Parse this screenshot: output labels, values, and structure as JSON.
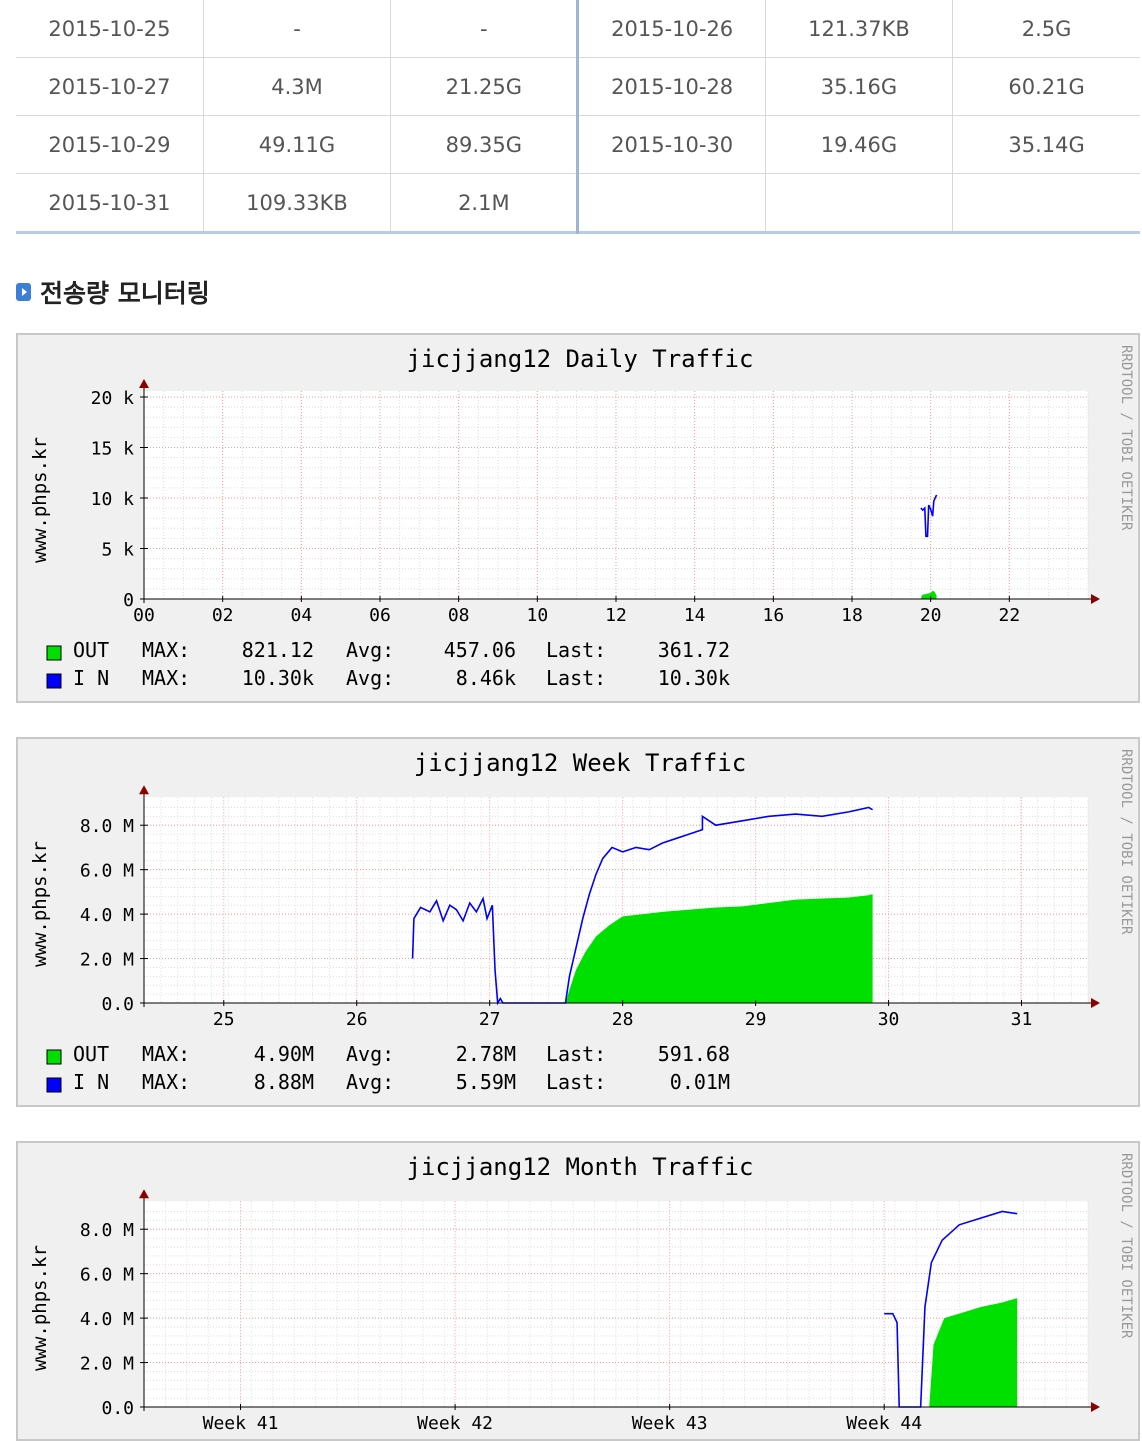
{
  "usage_table": {
    "rows": [
      [
        "2015-10-25",
        "-",
        "-",
        "2015-10-26",
        "121.37KB",
        "2.5G"
      ],
      [
        "2015-10-27",
        "4.3M",
        "21.25G",
        "2015-10-28",
        "35.16G",
        "60.21G"
      ],
      [
        "2015-10-29",
        "49.11G",
        "89.35G",
        "2015-10-30",
        "19.46G",
        "35.14G"
      ],
      [
        "2015-10-31",
        "109.33KB",
        "2.1M",
        "",
        "",
        ""
      ]
    ]
  },
  "section": {
    "title": "전송량 모니터링",
    "icon": "arrow-box-icon"
  },
  "watermark": "RRDTOOL / TOBI OETIKER",
  "colors": {
    "out": "#00e000",
    "in": "#0000ff",
    "grid_major": "#ff9999",
    "panel_bg": "#f0f0f0",
    "plot_bg": "#ffffff"
  },
  "chart_data": [
    {
      "type": "area",
      "title": "jicjjang12 Daily Traffic",
      "ylabel": "www.phps.kr",
      "ylim": [
        0,
        20000
      ],
      "yticks": [
        {
          "value": 0,
          "label": "0"
        },
        {
          "value": 5000,
          "label": "5 k"
        },
        {
          "value": 10000,
          "label": "10 k"
        },
        {
          "value": 15000,
          "label": "15 k"
        },
        {
          "value": 20000,
          "label": "20 k"
        }
      ],
      "xlim": [
        0,
        24
      ],
      "xticks": [
        {
          "value": 0,
          "label": "00"
        },
        {
          "value": 2,
          "label": "02"
        },
        {
          "value": 4,
          "label": "04"
        },
        {
          "value": 6,
          "label": "06"
        },
        {
          "value": 8,
          "label": "08"
        },
        {
          "value": 10,
          "label": "10"
        },
        {
          "value": 12,
          "label": "12"
        },
        {
          "value": 14,
          "label": "14"
        },
        {
          "value": 16,
          "label": "16"
        },
        {
          "value": 18,
          "label": "18"
        },
        {
          "value": 20,
          "label": "20"
        },
        {
          "value": 22,
          "label": "22"
        }
      ],
      "series": [
        {
          "name": "OUT",
          "kind": "area",
          "color": "#00e000",
          "points": [
            [
              19.75,
              0
            ],
            [
              19.78,
              400
            ],
            [
              19.9,
              520
            ],
            [
              20.0,
              600
            ],
            [
              20.05,
              820
            ],
            [
              20.1,
              700
            ],
            [
              20.15,
              361
            ]
          ]
        },
        {
          "name": "I N",
          "kind": "line",
          "color": "#0000ff",
          "points": [
            [
              19.75,
              9000
            ],
            [
              19.8,
              8800
            ],
            [
              19.85,
              9000
            ],
            [
              19.88,
              6200
            ],
            [
              19.92,
              6200
            ],
            [
              19.95,
              9300
            ],
            [
              20.0,
              8900
            ],
            [
              20.05,
              8200
            ],
            [
              20.08,
              9700
            ],
            [
              20.15,
              10300
            ]
          ]
        }
      ],
      "legend": [
        {
          "series": "OUT",
          "max_label": "MAX:",
          "max": "821.12",
          "avg_label": "Avg:",
          "avg": "457.06",
          "last_label": "Last:",
          "last": "361.72"
        },
        {
          "series": "I N",
          "max_label": "MAX:",
          "max": "10.30k",
          "avg_label": "Avg:",
          "avg": "8.46k",
          "last_label": "Last:",
          "last": "10.30k"
        }
      ]
    },
    {
      "type": "area",
      "title": "jicjjang12 Week Traffic",
      "ylabel": "www.phps.kr",
      "ylim": [
        0,
        9000000
      ],
      "yticks": [
        {
          "value": 0,
          "label": "0.0"
        },
        {
          "value": 2000000,
          "label": "2.0 M"
        },
        {
          "value": 4000000,
          "label": "4.0 M"
        },
        {
          "value": 6000000,
          "label": "6.0 M"
        },
        {
          "value": 8000000,
          "label": "8.0 M"
        }
      ],
      "xlim": [
        24.4,
        31.5
      ],
      "xticks": [
        {
          "value": 25,
          "label": "25"
        },
        {
          "value": 26,
          "label": "26"
        },
        {
          "value": 27,
          "label": "27"
        },
        {
          "value": 28,
          "label": "28"
        },
        {
          "value": 29,
          "label": "29"
        },
        {
          "value": 30,
          "label": "30"
        },
        {
          "value": 31,
          "label": "31"
        }
      ],
      "series": [
        {
          "name": "OUT",
          "kind": "area",
          "color": "#00e000",
          "points": [
            [
              27.57,
              0
            ],
            [
              27.6,
              600000
            ],
            [
              27.65,
              1500000
            ],
            [
              27.72,
              2300000
            ],
            [
              27.8,
              3000000
            ],
            [
              27.9,
              3500000
            ],
            [
              28.0,
              3900000
            ],
            [
              28.15,
              4000000
            ],
            [
              28.3,
              4100000
            ],
            [
              28.5,
              4200000
            ],
            [
              28.7,
              4300000
            ],
            [
              28.9,
              4350000
            ],
            [
              29.1,
              4500000
            ],
            [
              29.3,
              4650000
            ],
            [
              29.5,
              4700000
            ],
            [
              29.7,
              4750000
            ],
            [
              29.85,
              4850000
            ],
            [
              29.88,
              4900000
            ]
          ]
        },
        {
          "name": "I N",
          "kind": "line",
          "color": "#0000ff",
          "points": [
            [
              26.42,
              2000000
            ],
            [
              26.43,
              3800000
            ],
            [
              26.48,
              4300000
            ],
            [
              26.55,
              4100000
            ],
            [
              26.6,
              4600000
            ],
            [
              26.65,
              3700000
            ],
            [
              26.7,
              4400000
            ],
            [
              26.75,
              4200000
            ],
            [
              26.8,
              3700000
            ],
            [
              26.85,
              4500000
            ],
            [
              26.9,
              4100000
            ],
            [
              26.95,
              4700000
            ],
            [
              26.98,
              3800000
            ],
            [
              27.02,
              4400000
            ],
            [
              27.04,
              1500000
            ],
            [
              27.06,
              0
            ],
            [
              27.08,
              200000
            ],
            [
              27.1,
              0
            ],
            [
              27.57,
              0
            ],
            [
              27.6,
              1200000
            ],
            [
              27.65,
              2500000
            ],
            [
              27.7,
              3800000
            ],
            [
              27.75,
              4900000
            ],
            [
              27.8,
              5800000
            ],
            [
              27.85,
              6500000
            ],
            [
              27.92,
              7000000
            ],
            [
              28.0,
              6800000
            ],
            [
              28.1,
              7000000
            ],
            [
              28.2,
              6900000
            ],
            [
              28.3,
              7200000
            ],
            [
              28.4,
              7400000
            ],
            [
              28.5,
              7600000
            ],
            [
              28.6,
              7800000
            ],
            [
              28.6,
              8400000
            ],
            [
              28.7,
              8000000
            ],
            [
              28.9,
              8200000
            ],
            [
              29.1,
              8400000
            ],
            [
              29.3,
              8500000
            ],
            [
              29.5,
              8400000
            ],
            [
              29.7,
              8600000
            ],
            [
              29.85,
              8800000
            ],
            [
              29.88,
              8700000
            ]
          ]
        }
      ],
      "legend": [
        {
          "series": "OUT",
          "max_label": "MAX:",
          "max": "4.90M",
          "avg_label": "Avg:",
          "avg": "2.78M",
          "last_label": "Last:",
          "last": "591.68"
        },
        {
          "series": "I N",
          "max_label": "MAX:",
          "max": "8.88M",
          "avg_label": "Avg:",
          "avg": "5.59M",
          "last_label": "Last:",
          "last": "0.01M"
        }
      ]
    },
    {
      "type": "area",
      "title": "jicjjang12 Month Traffic",
      "ylabel": "www.phps.kr",
      "ylim": [
        0,
        9000000
      ],
      "yticks": [
        {
          "value": 0,
          "label": "0.0"
        },
        {
          "value": 2000000,
          "label": "2.0 M"
        },
        {
          "value": 4000000,
          "label": "4.0 M"
        },
        {
          "value": 6000000,
          "label": "6.0 M"
        },
        {
          "value": 8000000,
          "label": "8.0 M"
        }
      ],
      "xlim": [
        40.55,
        44.95
      ],
      "xticks": [
        {
          "value": 41,
          "label": "Week 41"
        },
        {
          "value": 42,
          "label": "Week 42"
        },
        {
          "value": 43,
          "label": "Week 43"
        },
        {
          "value": 44,
          "label": "Week 44"
        }
      ],
      "series": [
        {
          "name": "OUT",
          "kind": "area",
          "color": "#00e000",
          "points": [
            [
              44.21,
              0
            ],
            [
              44.23,
              2800000
            ],
            [
              44.28,
              4000000
            ],
            [
              44.35,
              4200000
            ],
            [
              44.45,
              4500000
            ],
            [
              44.55,
              4700000
            ],
            [
              44.62,
              4900000
            ]
          ]
        },
        {
          "name": "I N",
          "kind": "line",
          "color": "#0000ff",
          "points": [
            [
              44.0,
              4200000
            ],
            [
              44.04,
              4200000
            ],
            [
              44.06,
              3800000
            ],
            [
              44.07,
              0
            ],
            [
              44.14,
              0
            ],
            [
              44.17,
              0
            ],
            [
              44.19,
              4500000
            ],
            [
              44.22,
              6500000
            ],
            [
              44.27,
              7500000
            ],
            [
              44.35,
              8200000
            ],
            [
              44.45,
              8500000
            ],
            [
              44.55,
              8800000
            ],
            [
              44.62,
              8700000
            ]
          ]
        }
      ],
      "legend": []
    }
  ]
}
